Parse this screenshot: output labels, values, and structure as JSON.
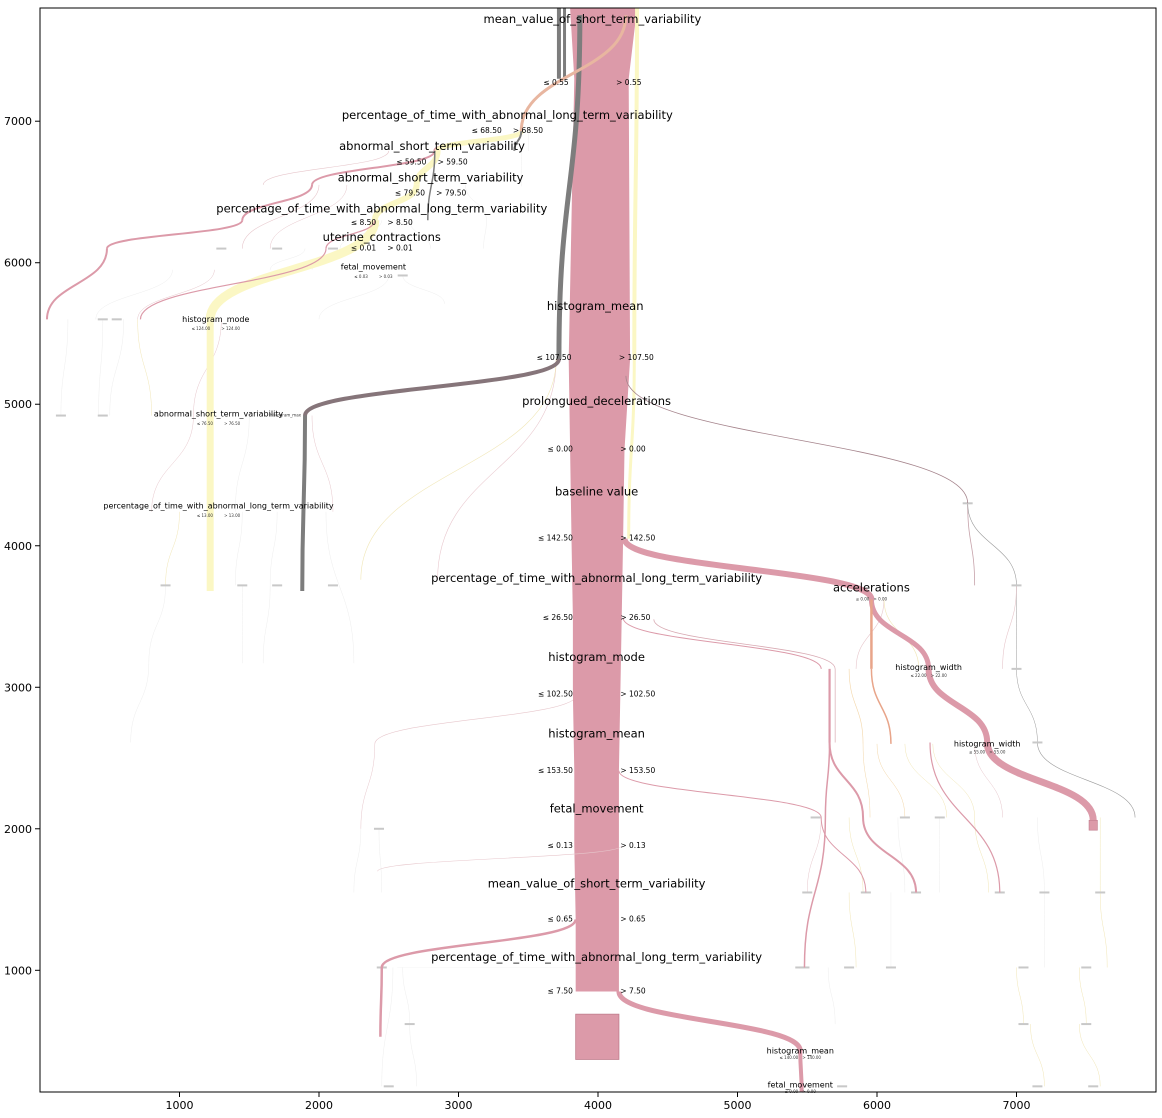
{
  "chart_data": {
    "type": "tree",
    "xlim": [
      0,
      8000
    ],
    "ylim": [
      140,
      7800
    ],
    "x_ticks": [
      1000,
      2000,
      3000,
      4000,
      5000,
      6000,
      7000
    ],
    "y_ticks": [
      1000,
      2000,
      3000,
      4000,
      5000,
      6000,
      7000
    ],
    "x_tick_labels": [
      "1000",
      "2000",
      "3000",
      "4000",
      "5000",
      "6000",
      "7000"
    ],
    "y_tick_labels": [
      "1000",
      "2000",
      "3000",
      "4000",
      "5000",
      "6000",
      "7000"
    ],
    "grid": false,
    "colors": {
      "main": "#dc9aa9",
      "main_dark": "#c07d8d",
      "yellow": "#fbf7c4",
      "gray": "#7d7d7d",
      "brown": "#86757a"
    },
    "main_splits": [
      {
        "feature": "mean_value_of_short_term_variability",
        "left": "≤ 0.55",
        "right": "> 0.55",
        "x": 3960,
        "title_y": 7720,
        "label_y": 7270
      },
      {
        "feature": "histogram_mean",
        "left": "≤ 107.50",
        "right": "> 107.50",
        "x": 3980,
        "title_y": 5690,
        "label_y": 5325
      },
      {
        "feature": "prolongued_decelerations",
        "left": "≤ 0.00",
        "right": "> 0.00",
        "x": 3990,
        "title_y": 5020,
        "label_y": 4680
      },
      {
        "feature": "baseline value",
        "left": "≤ 142.50",
        "right": "> 142.50",
        "x": 3990,
        "title_y": 4380,
        "label_y": 4050
      },
      {
        "feature": "percentage_of_time_with_abnormal_long_term_variability",
        "left": "≤ 26.50",
        "right": "> 26.50",
        "x": 3990,
        "title_y": 3770,
        "label_y": 3490
      },
      {
        "feature": "histogram_mode",
        "left": "≤ 102.50",
        "right": "> 102.50",
        "x": 3990,
        "title_y": 3210,
        "label_y": 2950
      },
      {
        "feature": "histogram_mean",
        "left": "≤ 153.50",
        "right": "> 153.50",
        "x": 3990,
        "title_y": 2670,
        "label_y": 2410
      },
      {
        "feature": "fetal_movement",
        "left": "≤ 0.13",
        "right": "> 0.13",
        "x": 3990,
        "title_y": 2140,
        "label_y": 1880
      },
      {
        "feature": "mean_value_of_short_term_variability",
        "left": "≤ 0.65",
        "right": "> 0.65",
        "x": 3990,
        "title_y": 1610,
        "label_y": 1360
      },
      {
        "feature": "percentage_of_time_with_abnormal_long_term_variability",
        "left": "≤ 7.50",
        "right": "> 7.50",
        "x": 3990,
        "title_y": 1090,
        "label_y": 850
      }
    ],
    "upper_left_splits": [
      {
        "feature": "percentage_of_time_with_abnormal_long_term_variability",
        "left": "≤ 68.50",
        "right": "> 68.50",
        "x": 3350,
        "title_y": 7040,
        "label_y": 6930
      },
      {
        "feature": "abnormal_short_term_variability",
        "left": "≤ 59.50",
        "right": "> 59.50",
        "x": 2810,
        "title_y": 6820,
        "label_y": 6710
      },
      {
        "feature": "abnormal_short_term_variability",
        "left": "≤ 79.50",
        "right": "> 79.50",
        "x": 2800,
        "title_y": 6600,
        "label_y": 6490
      },
      {
        "feature": "percentage_of_time_with_abnormal_long_term_variability",
        "left": "≤ 8.50",
        "right": "> 8.50",
        "x": 2450,
        "title_y": 6380,
        "label_y": 6280
      },
      {
        "feature": "uterine_contractions",
        "left": "≤ 0.01",
        "right": "> 0.01",
        "x": 2450,
        "title_y": 6180,
        "label_y": 6100
      },
      {
        "feature": "fetal_movement",
        "left": "≤ 0.03",
        "right": "> 0.03",
        "x": 2390,
        "title_y": 5970,
        "label_y": 5900
      },
      {
        "feature": "histogram_mode",
        "left": "≤ 124.00",
        "right": "> 124.00",
        "x": 1260,
        "title_y": 5600,
        "label_y": 5530
      },
      {
        "feature": "abnormal_short_term_variability",
        "left": "≤ 76.50",
        "right": "> 76.50",
        "x": 1280,
        "title_y": 4930,
        "label_y": 4860
      },
      {
        "feature": "percentage_of_time_with_abnormal_long_term_variability",
        "left": "≤ 13.00",
        "right": "> 13.00",
        "x": 1280,
        "title_y": 4280,
        "label_y": 4210
      }
    ],
    "right_splits": [
      {
        "feature": "accelerations",
        "left": "≤ 0.00",
        "right": "> 0.00",
        "x": 5960,
        "title_y": 3700,
        "label_y": 3620
      },
      {
        "feature": "histogram_width",
        "left": "≤ 22.00",
        "right": "> 22.00",
        "x": 6370,
        "title_y": 3140,
        "label_y": 3080
      },
      {
        "feature": "histogram_width",
        "left": "≤ 55.00",
        "right": "> 55.00",
        "x": 6790,
        "title_y": 2600,
        "label_y": 2540
      },
      {
        "feature": "histogram_mean",
        "left": "≤ 140.00",
        "right": "> 140.00",
        "x": 5450,
        "title_y": 430,
        "label_y": 380
      },
      {
        "feature": "fetal_movement",
        "left": "≤ 0.00",
        "right": "> 0.00",
        "x": 5450,
        "title_y": 190,
        "label_y": 140
      }
    ],
    "small_node_titles": [
      {
        "text": "histogram_max",
        "x": 1760,
        "y": 4920
      }
    ]
  }
}
